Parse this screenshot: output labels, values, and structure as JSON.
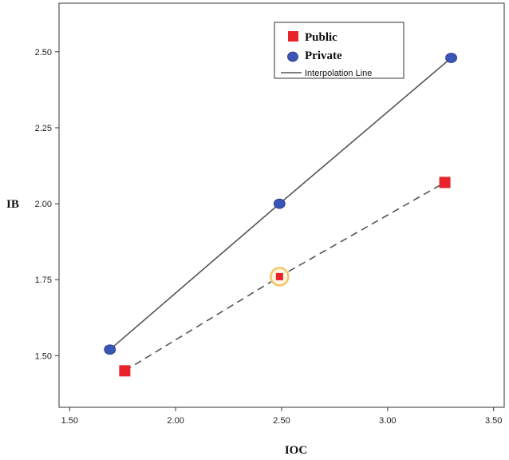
{
  "chart_data": {
    "type": "scatter",
    "xlabel": "IOC",
    "ylabel": "IB",
    "xlim": [
      1.45,
      3.55
    ],
    "ylim": [
      1.33,
      2.66
    ],
    "xticks": [
      "1.50",
      "2.00",
      "2.50",
      "3.00",
      "3.50"
    ],
    "yticks": [
      "1.50",
      "1.75",
      "2.00",
      "2.25",
      "2.50"
    ],
    "grid": false,
    "legend_position": "top-right",
    "series": [
      {
        "name": "Public",
        "marker": "square",
        "color": "#e8232a",
        "line": "dashed",
        "points": [
          {
            "x": 1.76,
            "y": 1.45
          },
          {
            "x": 2.49,
            "y": 1.76
          },
          {
            "x": 3.27,
            "y": 2.07
          }
        ]
      },
      {
        "name": "Private",
        "marker": "circle",
        "color": "#3a55b8",
        "line": "solid",
        "points": [
          {
            "x": 1.69,
            "y": 1.52
          },
          {
            "x": 2.49,
            "y": 2.0
          },
          {
            "x": 3.3,
            "y": 2.48
          }
        ]
      }
    ],
    "legend": [
      {
        "label": "Public",
        "marker": "square",
        "color": "#e8232a"
      },
      {
        "label": "Private",
        "marker": "circle",
        "color": "#3a55b8"
      },
      {
        "label": "Interpolation Line",
        "marker": "line",
        "color": "#555555"
      }
    ],
    "highlighted_point": {
      "series": "Public",
      "x": 2.49,
      "y": 1.76,
      "ring_color": "#f2c46a"
    }
  }
}
